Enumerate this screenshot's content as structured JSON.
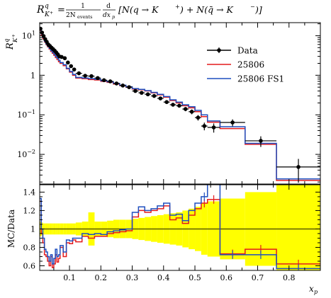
{
  "chart_data": {
    "type": "line",
    "title": "R^q_{K+} = 1/(2N_events) d/dx_p [N(q → K+) + N(q̄ → K−)]",
    "title_parts": {
      "R": "R",
      "sup": "q",
      "sub": "K",
      "subsup": "+",
      "eq": "=",
      "frac1_num": "1",
      "frac1_den": "2N",
      "frac1_den_sub": "events",
      "frac2_num": "d",
      "frac2_den": "dx",
      "frac2_den_sub": "p",
      "bracket": "[N(q → K",
      "bracket_sup1": "+",
      "bracket_mid": ") + N(q̄ → K",
      "bracket_sup2": "−",
      "bracket_end": ")]"
    },
    "ylabel_main": {
      "R": "R",
      "sup": "q",
      "sub": "K",
      "subsup": "+"
    },
    "ylabel_ratio": "MC/Data",
    "xlabel": {
      "base": "x",
      "sub": "p"
    },
    "x_ticks": [
      "0.1",
      "0.2",
      "0.3",
      "0.4",
      "0.5",
      "0.6",
      "0.7",
      "0.8"
    ],
    "main_y_ticks": [
      {
        "base": "10",
        "exp": "1"
      },
      {
        "base": "1",
        "exp": ""
      },
      {
        "base": "10",
        "exp": "−1"
      },
      {
        "base": "10",
        "exp": "−2"
      }
    ],
    "ratio_y_ticks": [
      "0.6",
      "0.8",
      "1",
      "1.2",
      "1.4"
    ],
    "xlim": [
      0.005,
      0.9
    ],
    "main_ylog_lim": [
      -2.75,
      1.33
    ],
    "ratio_ylim": [
      0.55,
      1.48
    ],
    "legend": [
      {
        "name": "Data",
        "color": "#000000"
      },
      {
        "name": "25806",
        "color": "#e41a1c"
      },
      {
        "name": "25806 FS1",
        "color": "#1f4fbf"
      }
    ],
    "bin_edges": [
      0.005,
      0.01,
      0.015,
      0.02,
      0.025,
      0.03,
      0.035,
      0.04,
      0.045,
      0.05,
      0.055,
      0.06,
      0.065,
      0.07,
      0.08,
      0.09,
      0.1,
      0.11,
      0.12,
      0.14,
      0.16,
      0.18,
      0.2,
      0.22,
      0.24,
      0.26,
      0.28,
      0.3,
      0.32,
      0.34,
      0.36,
      0.38,
      0.4,
      0.42,
      0.44,
      0.46,
      0.48,
      0.5,
      0.52,
      0.54,
      0.58,
      0.66,
      0.76,
      0.9
    ],
    "data": {
      "y": [
        15.0,
        12.0,
        9.8,
        8.2,
        7.0,
        6.0,
        5.5,
        5.0,
        4.6,
        4.2,
        3.8,
        3.4,
        3.0,
        2.9,
        2.7,
        2.1,
        1.7,
        1.4,
        1.12,
        0.97,
        0.95,
        0.85,
        0.75,
        0.7,
        0.62,
        0.55,
        0.5,
        0.4,
        0.36,
        0.33,
        0.3,
        0.26,
        0.21,
        0.18,
        0.17,
        0.14,
        0.12,
        0.085,
        0.052,
        0.048,
        0.064,
        0.022,
        0.0048
      ],
      "yerr_rel": [
        0.05,
        0.05,
        0.05,
        0.05,
        0.05,
        0.05,
        0.05,
        0.05,
        0.05,
        0.05,
        0.05,
        0.05,
        0.05,
        0.05,
        0.05,
        0.05,
        0.05,
        0.05,
        0.05,
        0.05,
        0.05,
        0.05,
        0.05,
        0.05,
        0.05,
        0.06,
        0.06,
        0.06,
        0.07,
        0.07,
        0.07,
        0.08,
        0.08,
        0.09,
        0.1,
        0.12,
        0.14,
        0.16,
        0.22,
        0.26,
        0.2,
        0.3,
        0.6
      ]
    },
    "series": [
      {
        "name": "25806",
        "color": "#e41a1c",
        "y": [
          13.5,
          10.5,
          8.5,
          7.0,
          6.0,
          5.2,
          4.6,
          4.0,
          3.6,
          3.2,
          2.8,
          2.5,
          2.2,
          2.0,
          1.75,
          1.45,
          1.2,
          1.0,
          0.85,
          0.82,
          0.78,
          0.76,
          0.7,
          0.66,
          0.6,
          0.55,
          0.5,
          0.45,
          0.43,
          0.4,
          0.36,
          0.32,
          0.28,
          0.23,
          0.2,
          0.17,
          0.15,
          0.12,
          0.09,
          0.065,
          0.045,
          0.018,
          0.0022
        ]
      },
      {
        "name": "25806 FS1",
        "color": "#1f4fbf",
        "y": [
          14.0,
          11.0,
          9.0,
          7.3,
          6.2,
          5.4,
          4.8,
          4.2,
          3.8,
          3.4,
          3.0,
          2.7,
          2.4,
          2.1,
          1.85,
          1.5,
          1.25,
          1.05,
          0.88,
          0.85,
          0.82,
          0.79,
          0.72,
          0.68,
          0.62,
          0.56,
          0.51,
          0.46,
          0.44,
          0.41,
          0.37,
          0.33,
          0.29,
          0.24,
          0.21,
          0.18,
          0.16,
          0.13,
          0.1,
          0.07,
          0.05,
          0.019,
          0.0024
        ]
      }
    ],
    "ratio": {
      "red": [
        1.3,
        0.95,
        0.85,
        0.72,
        0.7,
        0.65,
        0.6,
        0.7,
        0.58,
        0.62,
        0.72,
        0.64,
        0.68,
        0.8,
        0.7,
        0.85,
        0.84,
        0.88,
        0.86,
        0.92,
        0.9,
        0.92,
        0.92,
        0.95,
        0.96,
        0.97,
        0.98,
        1.13,
        1.2,
        1.18,
        1.2,
        1.22,
        1.25,
        1.1,
        1.12,
        1.06,
        1.15,
        1.22,
        1.28,
        1.32,
        0.73,
        0.78,
        0.62
      ],
      "blue": [
        1.33,
        1.0,
        0.9,
        0.78,
        0.75,
        0.7,
        0.65,
        0.72,
        0.62,
        0.68,
        0.78,
        0.7,
        0.72,
        0.82,
        0.75,
        0.88,
        0.87,
        0.9,
        0.9,
        0.95,
        0.94,
        0.95,
        0.94,
        0.97,
        0.98,
        0.99,
        1.0,
        1.18,
        1.24,
        1.2,
        1.22,
        1.25,
        1.28,
        1.15,
        1.16,
        1.09,
        1.2,
        1.28,
        1.35,
        1.6,
        0.72,
        0.72,
        0.57
      ],
      "band": [
        0.08,
        0.07,
        0.06,
        0.06,
        0.06,
        0.06,
        0.06,
        0.06,
        0.06,
        0.06,
        0.06,
        0.06,
        0.06,
        0.06,
        0.06,
        0.06,
        0.06,
        0.06,
        0.07,
        0.08,
        0.18,
        0.08,
        0.08,
        0.09,
        0.1,
        0.1,
        0.1,
        0.11,
        0.12,
        0.13,
        0.14,
        0.15,
        0.16,
        0.17,
        0.18,
        0.2,
        0.22,
        0.24,
        0.28,
        0.3,
        0.33,
        0.4,
        0.55
      ]
    },
    "grid": false,
    "legend_position": "top-right"
  }
}
